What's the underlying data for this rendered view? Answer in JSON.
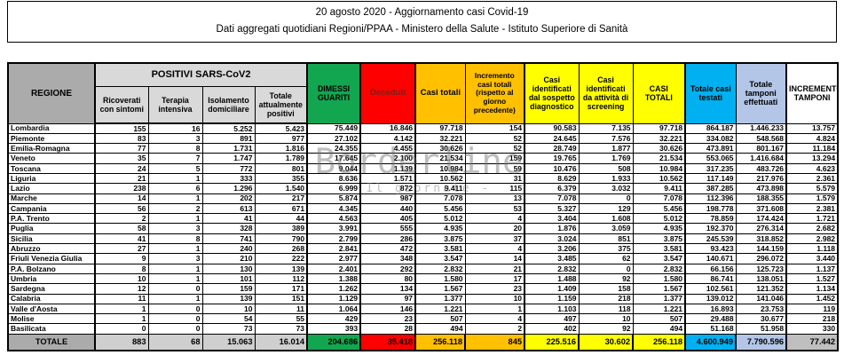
{
  "title": {
    "line1": "20 agosto 2020 - Aggiornamento casi Covid-19",
    "line2": "Dati aggregati quotidiani Regioni/PPAA - Ministero della Salute - Istituto Superiore di Sanità"
  },
  "watermark": {
    "line1": "Borderline",
    "line2": "- Il giornale -"
  },
  "colors": {
    "header_gray_dark": "#ABABAB",
    "header_gray_light": "#D9D9D9",
    "green": "#13A650",
    "red": "#FE0000",
    "red_header_text": "#7B2018",
    "orange": "#FFC000",
    "yellow": "#FFFF00",
    "cyan": "#00B0F0",
    "light_blue": "#B4C6E7",
    "total_gray": "#BFBFBF",
    "border": "#000000"
  },
  "chart_data": {
    "type": "table",
    "title": "20 agosto 2020 - Aggiornamento casi Covid-19",
    "subtitle": "Dati aggregati quotidiani Regioni/PPAA - Ministero della Salute - Istituto Superiore di Sanità",
    "column_group": "POSITIVI SARS-CoV2",
    "columns": [
      "REGIONE",
      "Ricoverati con sintomi",
      "Terapia intensiva",
      "Isolamento domiciliare",
      "Totale attualmente positivi",
      "DIMESSI GUARITI",
      "Deceduti",
      "Casi totali",
      "Incremento casi totali (rispetto al giorno precedente)",
      "Casi identificati dal sospetto diagnostico",
      "Casi identificati da attività di screening",
      "CASI TOTALI",
      "Totale casi testati",
      "Totale tamponi effettuati",
      "INCREMENTO TAMPONI"
    ],
    "rows": [
      [
        "Lombardia",
        "155",
        "16",
        "5.252",
        "5.423",
        "75.449",
        "16.846",
        "97.718",
        "154",
        "90.583",
        "7.135",
        "97.718",
        "864.187",
        "1.446.233",
        "13.757"
      ],
      [
        "Piemonte",
        "83",
        "3",
        "891",
        "977",
        "27.102",
        "4.142",
        "32.221",
        "52",
        "24.645",
        "7.576",
        "32.221",
        "334.082",
        "548.568",
        "4.824"
      ],
      [
        "Emilia-Romagna",
        "77",
        "8",
        "1.731",
        "1.816",
        "24.355",
        "4.455",
        "30.626",
        "52",
        "28.749",
        "1.877",
        "30.626",
        "473.891",
        "801.167",
        "11.184"
      ],
      [
        "Veneto",
        "35",
        "7",
        "1.747",
        "1.789",
        "17.645",
        "2.100",
        "21.534",
        "159",
        "19.765",
        "1.769",
        "21.534",
        "553.065",
        "1.416.684",
        "13.294"
      ],
      [
        "Toscana",
        "24",
        "5",
        "772",
        "801",
        "9.044",
        "1.139",
        "10.984",
        "59",
        "10.476",
        "508",
        "10.984",
        "317.235",
        "483.726",
        "4.623"
      ],
      [
        "Liguria",
        "21",
        "1",
        "333",
        "355",
        "8.636",
        "1.571",
        "10.562",
        "31",
        "8.629",
        "1.933",
        "10.562",
        "117.149",
        "217.976",
        "2.361"
      ],
      [
        "Lazio",
        "238",
        "6",
        "1.296",
        "1.540",
        "6.999",
        "872",
        "9.411",
        "115",
        "6.379",
        "3.032",
        "9.411",
        "387.285",
        "473.898",
        "5.579"
      ],
      [
        "Marche",
        "14",
        "1",
        "202",
        "217",
        "5.874",
        "987",
        "7.078",
        "13",
        "7.078",
        "0",
        "7.078",
        "112.396",
        "188.355",
        "1.579"
      ],
      [
        "Campania",
        "56",
        "2",
        "613",
        "671",
        "4.345",
        "440",
        "5.456",
        "53",
        "5.327",
        "129",
        "5.456",
        "198.778",
        "371.608",
        "2.381"
      ],
      [
        "P.A. Trento",
        "2",
        "1",
        "41",
        "44",
        "4.563",
        "405",
        "5.012",
        "4",
        "3.404",
        "1.608",
        "5.012",
        "78.859",
        "174.424",
        "1.721"
      ],
      [
        "Puglia",
        "58",
        "3",
        "328",
        "389",
        "3.991",
        "555",
        "4.935",
        "20",
        "1.876",
        "3.059",
        "4.935",
        "192.370",
        "276.314",
        "2.682"
      ],
      [
        "Sicilia",
        "41",
        "8",
        "741",
        "790",
        "2.799",
        "286",
        "3.875",
        "37",
        "3.024",
        "851",
        "3.875",
        "245.539",
        "318.852",
        "2.982"
      ],
      [
        "Abruzzo",
        "27",
        "1",
        "240",
        "268",
        "2.841",
        "472",
        "3.581",
        "4",
        "3.206",
        "375",
        "3.581",
        "93.423",
        "144.159",
        "1.118"
      ],
      [
        "Friuli Venezia Giulia",
        "9",
        "3",
        "210",
        "222",
        "2.977",
        "348",
        "3.547",
        "14",
        "3.485",
        "62",
        "3.547",
        "140.671",
        "296.072",
        "3.440"
      ],
      [
        "P.A. Bolzano",
        "8",
        "1",
        "130",
        "139",
        "2.401",
        "292",
        "2.832",
        "21",
        "2.832",
        "0",
        "2.832",
        "66.156",
        "125.723",
        "1.137"
      ],
      [
        "Umbria",
        "10",
        "1",
        "101",
        "112",
        "1.388",
        "80",
        "1.580",
        "17",
        "1.488",
        "92",
        "1.580",
        "86.741",
        "138.051",
        "1.527"
      ],
      [
        "Sardegna",
        "12",
        "0",
        "159",
        "171",
        "1.262",
        "134",
        "1.567",
        "23",
        "1.409",
        "158",
        "1.567",
        "102.561",
        "121.352",
        "1.134"
      ],
      [
        "Calabria",
        "11",
        "1",
        "139",
        "151",
        "1.129",
        "97",
        "1.377",
        "10",
        "1.159",
        "218",
        "1.377",
        "139.012",
        "141.046",
        "1.452"
      ],
      [
        "Valle d'Aosta",
        "1",
        "0",
        "10",
        "11",
        "1.064",
        "146",
        "1.221",
        "1",
        "1.103",
        "118",
        "1.221",
        "16.893",
        "23.753",
        "119"
      ],
      [
        "Molise",
        "1",
        "0",
        "54",
        "55",
        "429",
        "23",
        "507",
        "4",
        "497",
        "10",
        "507",
        "29.488",
        "30.677",
        "218"
      ],
      [
        "Basilicata",
        "0",
        "0",
        "73",
        "73",
        "393",
        "28",
        "494",
        "2",
        "402",
        "92",
        "494",
        "51.168",
        "51.958",
        "330"
      ]
    ],
    "total_row": [
      "TOTALE",
      "883",
      "68",
      "15.063",
      "16.014",
      "204.686",
      "35.418",
      "256.118",
      "845",
      "225.516",
      "30.602",
      "256.118",
      "4.600.949",
      "7.790.596",
      "77.442"
    ]
  }
}
